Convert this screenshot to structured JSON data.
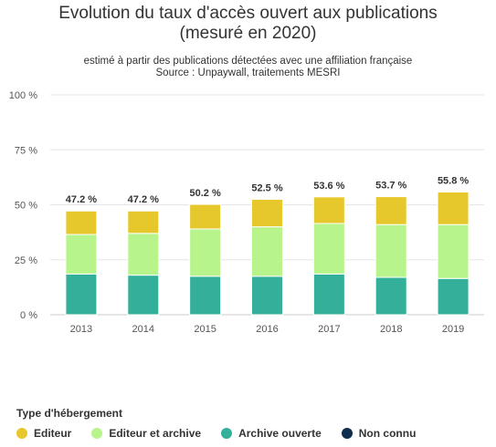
{
  "chart_data": {
    "type": "bar",
    "stacked": true,
    "title": [
      "Evolution du taux d'accès ouvert aux publications",
      "(mesuré en 2020)"
    ],
    "subtitle": [
      "estimé à partir des publications détectées avec une affiliation française",
      "Source : Unpaywall, traitements MESRI"
    ],
    "categories": [
      "2013",
      "2014",
      "2015",
      "2016",
      "2017",
      "2018",
      "2019"
    ],
    "yticks": [
      "0 %",
      "25 %",
      "50 %",
      "75 %",
      "100 %"
    ],
    "ylim": [
      0,
      100
    ],
    "grid": true,
    "legend_placement": "bottom-left",
    "legend_title": "Type d'hébergement",
    "series": [
      {
        "name": "Archive ouverte",
        "color": "#34b09a",
        "values": [
          18.5,
          18.0,
          17.5,
          17.5,
          18.5,
          17.0,
          16.5
        ]
      },
      {
        "name": "Editeur et archive",
        "color": "#b7f58c",
        "values": [
          18.0,
          19.0,
          21.5,
          22.5,
          23.0,
          24.0,
          24.5
        ]
      },
      {
        "name": "Editeur",
        "color": "#e7c82c",
        "values": [
          10.7,
          10.2,
          11.2,
          12.5,
          12.1,
          12.7,
          14.8
        ]
      },
      {
        "name": "Non connu",
        "color": "#0f2d4d",
        "values": [
          0,
          0,
          0,
          0,
          0,
          0,
          0
        ]
      }
    ],
    "totals": [
      "47.2 %",
      "47.2 %",
      "50.2 %",
      "52.5 %",
      "53.6 %",
      "53.7 %",
      "55.8 %"
    ],
    "legend_order": [
      "Editeur",
      "Editeur et archive",
      "Archive ouverte",
      "Non connu"
    ]
  }
}
